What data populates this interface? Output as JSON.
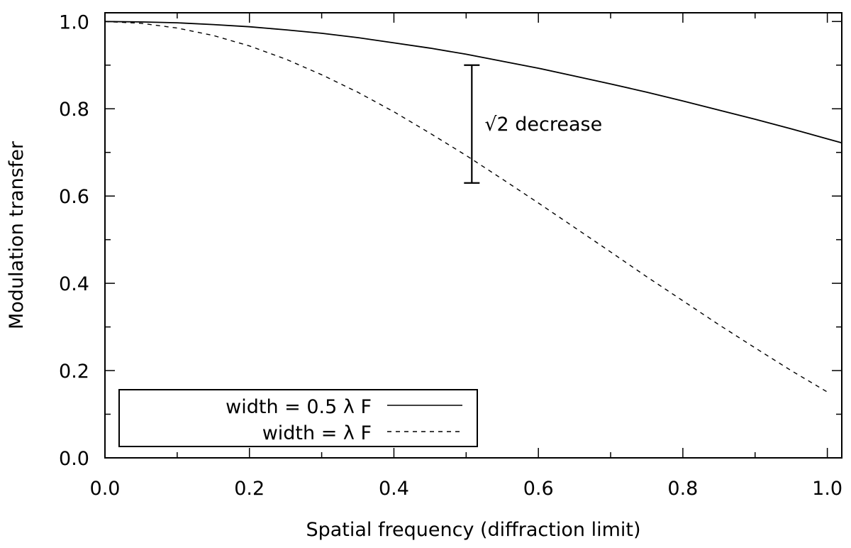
{
  "chart_data": {
    "type": "line",
    "title": "",
    "xlabel": "Spatial frequency (diffraction limit)",
    "ylabel": "Modulation transfer",
    "xlim": [
      0.0,
      1.02
    ],
    "ylim": [
      0.0,
      1.02
    ],
    "x_ticks": [
      "0.0",
      "0.2",
      "0.4",
      "0.6",
      "0.8",
      "1.0"
    ],
    "y_ticks": [
      "0.0",
      "0.2",
      "0.4",
      "0.6",
      "0.8",
      "1.0"
    ],
    "x_tick_values": [
      0.0,
      0.2,
      0.4,
      0.6,
      0.8,
      1.0
    ],
    "y_tick_values": [
      0.0,
      0.2,
      0.4,
      0.6,
      0.8,
      1.0
    ],
    "grid": false,
    "legend_position": "bottom-left",
    "series": [
      {
        "name": "width = 0.5 λ F",
        "style": "solid",
        "color": "#000000",
        "x": [
          0.0,
          0.05,
          0.1,
          0.15,
          0.2,
          0.25,
          0.3,
          0.35,
          0.4,
          0.45,
          0.5,
          0.55,
          0.6,
          0.65,
          0.7,
          0.75,
          0.8,
          0.85,
          0.9,
          0.95,
          1.0,
          1.02
        ],
        "y": [
          1.0,
          0.999,
          0.997,
          0.993,
          0.988,
          0.981,
          0.973,
          0.963,
          0.951,
          0.939,
          0.925,
          0.909,
          0.893,
          0.875,
          0.857,
          0.838,
          0.818,
          0.797,
          0.776,
          0.754,
          0.731,
          0.722
        ]
      },
      {
        "name": "width = λ F",
        "style": "dashed",
        "color": "#000000",
        "x": [
          0.0,
          0.05,
          0.1,
          0.15,
          0.2,
          0.25,
          0.3,
          0.35,
          0.4,
          0.45,
          0.5,
          0.55,
          0.6,
          0.65,
          0.7,
          0.75,
          0.8,
          0.85,
          0.9,
          0.95,
          1.0
        ],
        "y": [
          1.0,
          0.996,
          0.985,
          0.968,
          0.944,
          0.914,
          0.878,
          0.838,
          0.793,
          0.744,
          0.693,
          0.639,
          0.584,
          0.528,
          0.472,
          0.415,
          0.36,
          0.305,
          0.252,
          0.2,
          0.151
        ]
      }
    ],
    "annotation": {
      "text": "√2 decrease",
      "x": 0.5,
      "y_top": 0.9,
      "y_bottom": 0.63
    }
  }
}
